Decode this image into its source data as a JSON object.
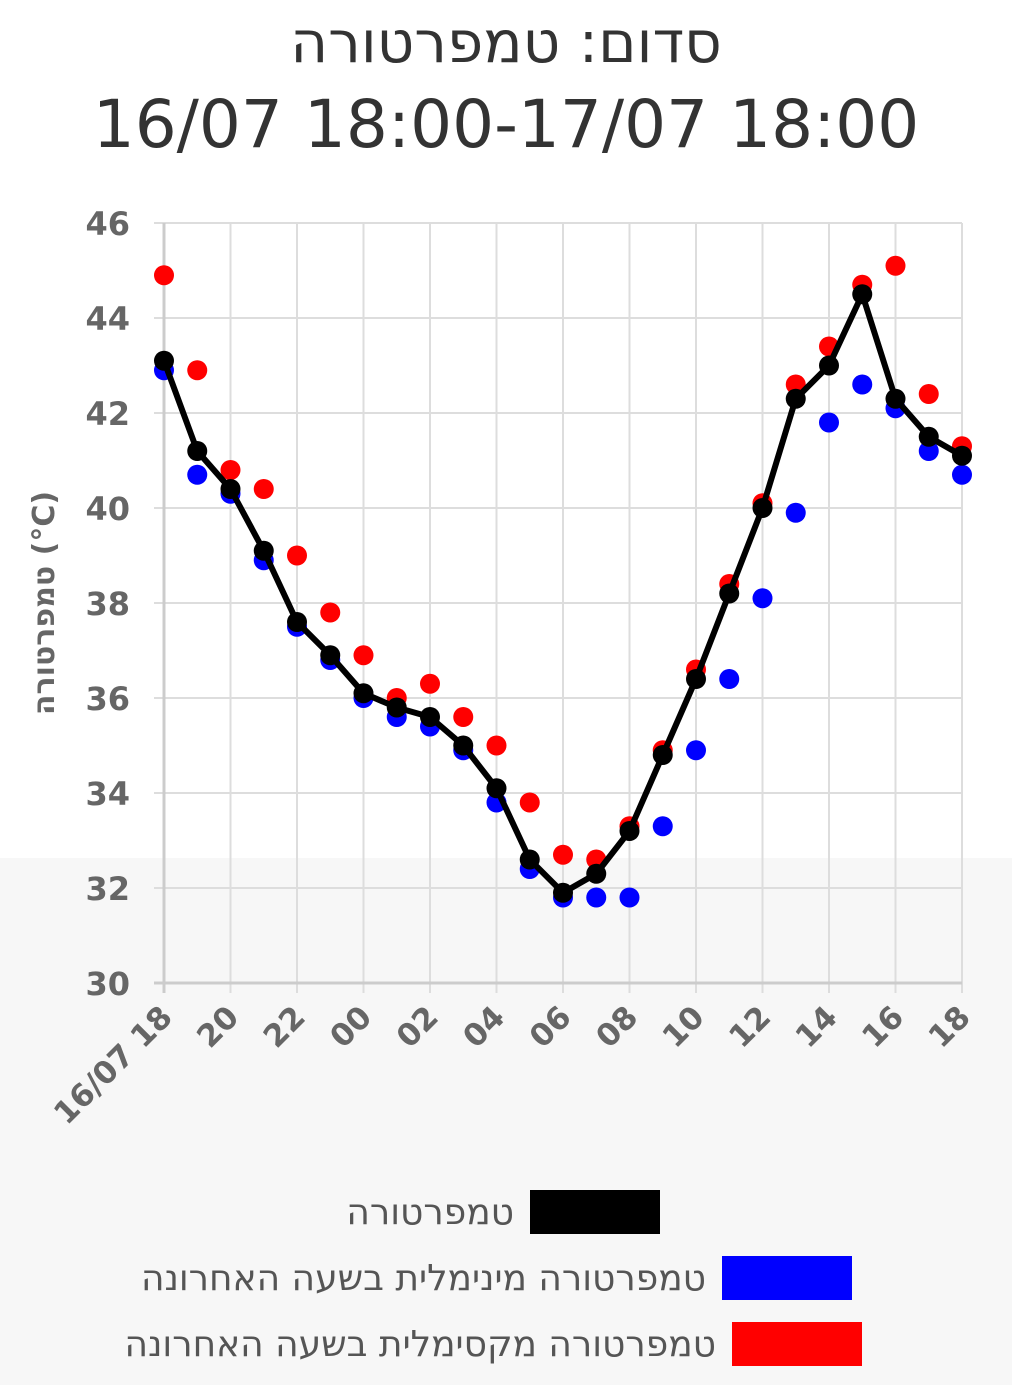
{
  "title": {
    "line1": "סדום: טמפרטורה",
    "line2": "16/07 18:00-17/07 18:00"
  },
  "chart_data": {
    "type": "line",
    "ylabel": "טמפרטורה (°C)",
    "xlabel": "",
    "ylim": [
      30,
      46
    ],
    "yticks": [
      30,
      32,
      34,
      36,
      38,
      40,
      42,
      44,
      46
    ],
    "x_hours": [
      "18",
      "19",
      "20",
      "21",
      "22",
      "23",
      "00",
      "01",
      "02",
      "03",
      "04",
      "05",
      "06",
      "07",
      "08",
      "09",
      "10",
      "11",
      "12",
      "13",
      "14",
      "15",
      "16",
      "17",
      "18"
    ],
    "xtick_labels": [
      "16/07 18",
      "20",
      "22",
      "00",
      "02",
      "04",
      "06",
      "08",
      "10",
      "12",
      "14",
      "16",
      "18"
    ],
    "grid": true,
    "legend_position": "bottom",
    "series": [
      {
        "name": "טמפרטורה",
        "color": "#000000",
        "style": "line-markers",
        "values": [
          43.1,
          41.2,
          40.4,
          39.1,
          37.6,
          36.9,
          36.1,
          35.8,
          35.6,
          35.0,
          34.1,
          32.6,
          31.9,
          32.3,
          33.2,
          34.8,
          36.4,
          38.2,
          40.0,
          42.3,
          43.0,
          44.5,
          42.3,
          41.5,
          41.1
        ]
      },
      {
        "name": "טמפרטורה מינימלית בשעה האחרונה",
        "color": "#0000ff",
        "style": "markers",
        "values": [
          42.9,
          40.7,
          40.3,
          38.9,
          37.5,
          36.8,
          36.0,
          35.6,
          35.4,
          34.9,
          33.8,
          32.4,
          31.8,
          31.8,
          31.8,
          33.3,
          34.9,
          36.4,
          38.1,
          39.9,
          41.8,
          42.6,
          42.1,
          41.2,
          40.7
        ]
      },
      {
        "name": "טמפרטורה מקסימלית בשעה האחרונה",
        "color": "#ff0000",
        "style": "markers",
        "values": [
          44.9,
          42.9,
          40.8,
          40.4,
          39.0,
          37.8,
          36.9,
          36.0,
          36.3,
          35.6,
          35.0,
          33.8,
          32.7,
          32.6,
          33.3,
          34.9,
          36.6,
          38.4,
          40.1,
          42.6,
          43.4,
          44.7,
          45.1,
          42.4,
          41.3
        ]
      }
    ]
  }
}
